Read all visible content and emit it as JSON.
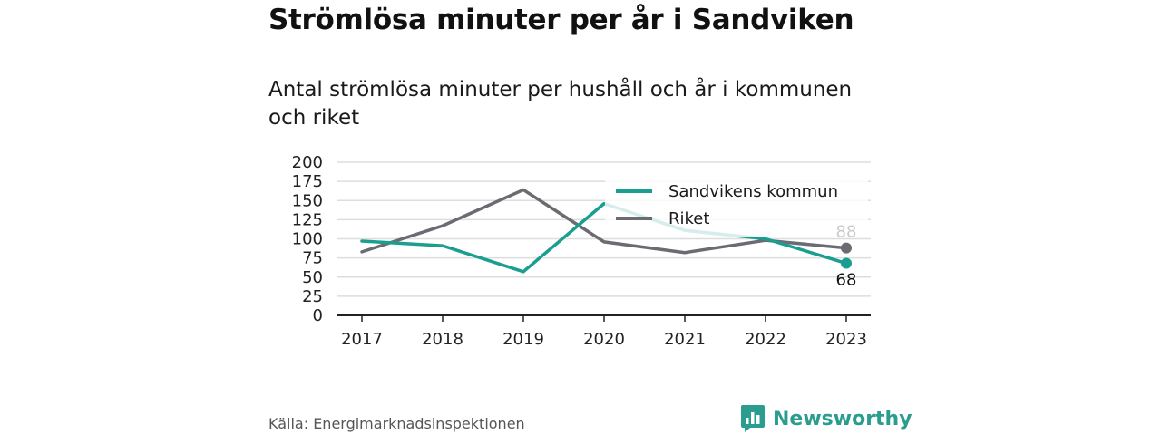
{
  "title": "Strömlösa minuter per år i Sandviken",
  "subtitle": "Antal strömlösa minuter per hushåll och år i kommunen och riket",
  "source": "Källa: Energimarknadsinspektionen",
  "brand": "Newsworthy",
  "colors": {
    "sandviken": "#1a9e90",
    "riket": "#6b6b72",
    "grid": "#dddddd",
    "axis": "#222222",
    "brand": "#2a9d8f"
  },
  "chart_data": {
    "type": "line",
    "title": "Strömlösa minuter per år i Sandviken",
    "subtitle": "Antal strömlösa minuter per hushåll och år i kommunen och riket",
    "x": [
      "2017",
      "2018",
      "2019",
      "2020",
      "2021",
      "2022",
      "2023"
    ],
    "ylim": [
      0,
      200
    ],
    "yticks": [
      0,
      25,
      50,
      75,
      100,
      125,
      150,
      175,
      200
    ],
    "grid": true,
    "legend_position": "top-right",
    "series": [
      {
        "name": "Sandvikens kommun",
        "values": [
          97,
          91,
          57,
          146,
          111,
          100,
          68
        ],
        "end_label": "68"
      },
      {
        "name": "Riket",
        "values": [
          83,
          117,
          164,
          96,
          82,
          98,
          88
        ],
        "end_label": "88"
      }
    ]
  }
}
